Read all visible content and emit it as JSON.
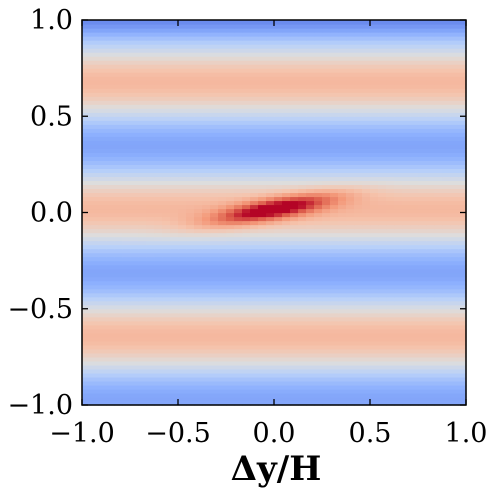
{
  "chart_data": {
    "type": "heatmap",
    "colormap": "coolwarm",
    "title": "",
    "xlabel": "Δy/H",
    "ylabel": "",
    "xlim": [
      -1.0,
      1.0
    ],
    "ylim": [
      -1.0,
      1.0
    ],
    "x_ticks": [
      -1.0,
      -0.5,
      0.0,
      0.5,
      1.0
    ],
    "x_tick_labels": [
      "−1.0",
      "−0.5",
      "0.0",
      "0.5",
      "1.0"
    ],
    "y_ticks": [
      -1.0,
      -0.5,
      0.0,
      0.5,
      1.0
    ],
    "y_tick_labels": [
      "−1.0",
      "−0.5",
      "0.0",
      "0.5",
      "1.0"
    ],
    "grid": false,
    "colorbar": false,
    "field_description_values": {
      "central_peak": {
        "x": 0.0,
        "y": 0.02,
        "value": 1.0
      },
      "horizontal_band_centers_y": [
        0.68,
        0.02,
        -0.65
      ],
      "band_value": 0.55,
      "trough_centers_y": [
        0.95,
        0.35,
        -0.3,
        -0.95
      ],
      "trough_value": 0.3,
      "peak_tilt_slope": 0.18
    }
  }
}
